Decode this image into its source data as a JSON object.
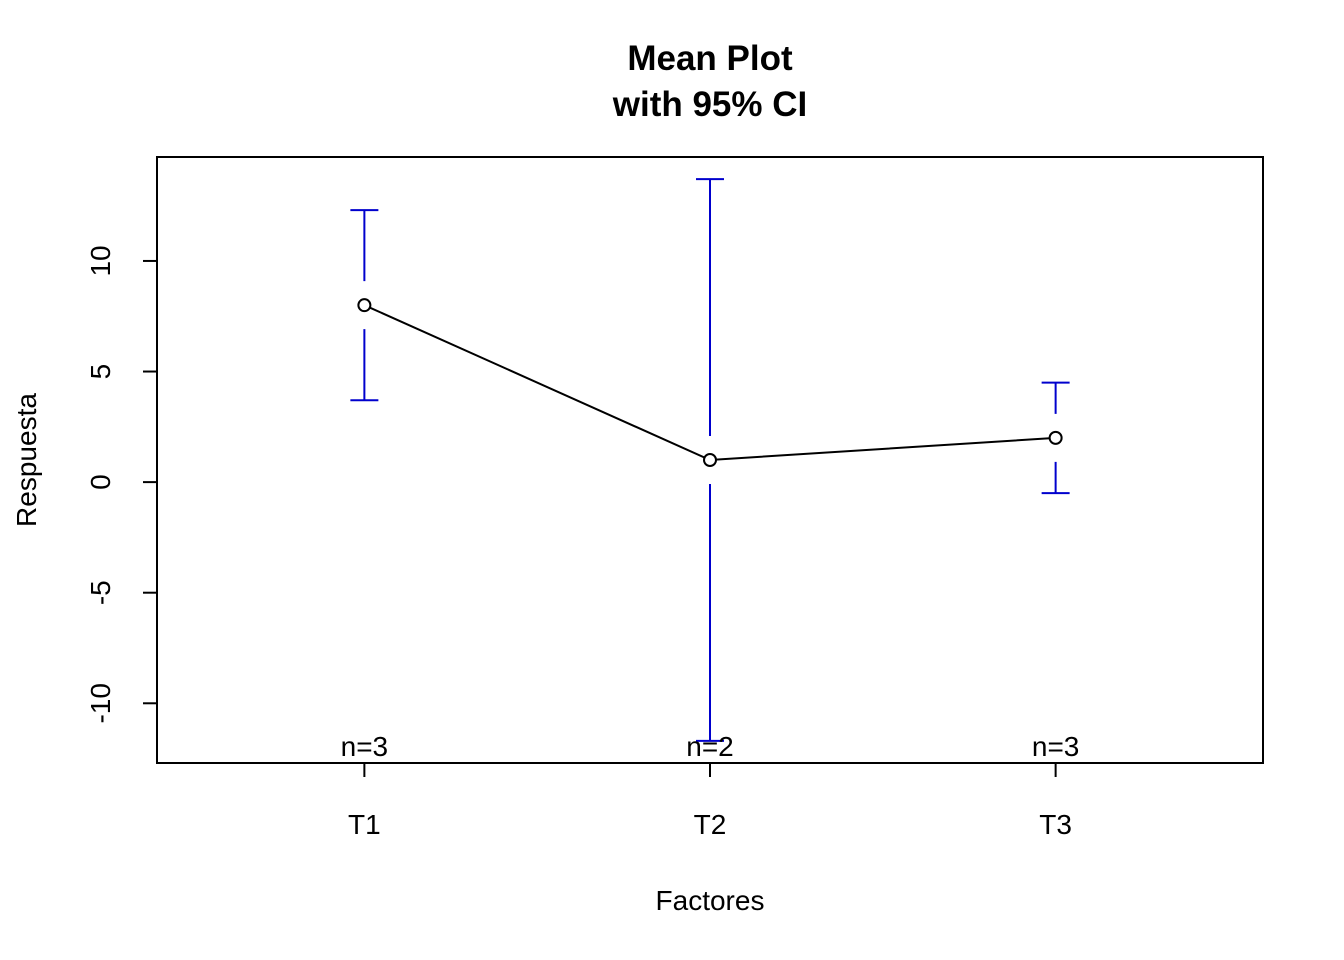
{
  "chart_data": {
    "type": "line",
    "title": "Mean Plot",
    "subtitle": "with 95% CI",
    "xlabel": "Factores",
    "ylabel": "Respuesta",
    "categories": [
      "T1",
      "T2",
      "T3"
    ],
    "means": [
      8,
      1,
      2
    ],
    "ci_lower": [
      3.7,
      -11.7,
      -0.5
    ],
    "ci_upper": [
      12.3,
      13.7,
      4.5
    ],
    "n_labels": [
      "n=3",
      "n=2",
      "n=3"
    ],
    "yticks": [
      -10,
      -5,
      0,
      5,
      10
    ],
    "ylim": [
      -12.7,
      14.7
    ],
    "line_color": "#000000",
    "ci_color": "#0000cd"
  }
}
